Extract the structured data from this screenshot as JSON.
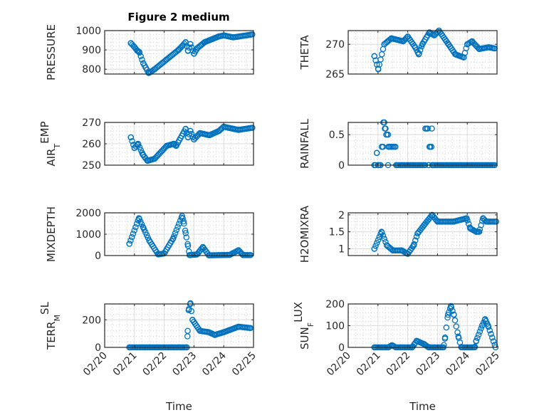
{
  "figure_title": "Figure 2 medium",
  "chart_data": [
    {
      "type": "scatter",
      "ylabel": {
        "main": "PRESSURE"
      },
      "ylim": [
        775,
        1000
      ],
      "yticks": [
        800,
        900,
        1000
      ],
      "xlim": [
        0,
        5
      ],
      "xlabel": "",
      "mode": "linear",
      "x": [
        0.88,
        1.0,
        1.1,
        1.16,
        1.3,
        1.48,
        1.68,
        2.08,
        2.48,
        2.72,
        2.8,
        2.88,
        3.0,
        3.12,
        3.36,
        3.84,
        4.0,
        4.32,
        4.96
      ],
      "y": [
        935,
        915,
        895,
        890,
        830,
        780,
        800,
        850,
        900,
        940,
        895,
        930,
        880,
        910,
        940,
        970,
        975,
        965,
        980
      ]
    },
    {
      "type": "scatter",
      "ylabel": {
        "main": "THETA"
      },
      "ylim": [
        265,
        272.3
      ],
      "yticks": [
        265,
        270
      ],
      "xlim": [
        0,
        5
      ],
      "xlabel": "",
      "mode": "linear",
      "x": [
        0.88,
        1.01,
        1.21,
        1.45,
        1.85,
        2.0,
        2.25,
        2.37,
        2.49,
        2.73,
        2.89,
        3.05,
        3.37,
        3.6,
        3.88,
        4.0,
        4.16,
        4.4,
        4.72,
        4.92
      ],
      "y": [
        268,
        265.8,
        270,
        271,
        270.5,
        271.3,
        269.5,
        268.3,
        270,
        272,
        271.5,
        272.3,
        270,
        268.3,
        267.8,
        270,
        270.5,
        269.2,
        269.5,
        269.3
      ]
    },
    {
      "type": "scatter",
      "ylabel": {
        "main": "AIR",
        "sub": "T",
        "rest": "EMP"
      },
      "ylim": [
        250,
        270
      ],
      "yticks": [
        250,
        260,
        270
      ],
      "xlim": [
        0,
        5
      ],
      "xlabel": "",
      "mode": "linear",
      "x": [
        0.88,
        1.0,
        1.12,
        1.28,
        1.44,
        1.68,
        2.08,
        2.32,
        2.4,
        2.72,
        2.8,
        2.88,
        3.0,
        3.2,
        3.52,
        3.84,
        4.0,
        4.32,
        4.5,
        4.96
      ],
      "y": [
        263,
        258,
        260,
        255,
        252,
        253,
        259,
        260,
        259,
        267,
        263,
        266,
        262,
        265,
        264,
        266,
        268,
        267,
        266.5,
        267.5
      ]
    },
    {
      "type": "scatter",
      "ylabel": {
        "main": "RAINFALL"
      },
      "ylim": [
        0,
        0.7
      ],
      "yticks": [
        0,
        0.5
      ],
      "xlim": [
        0,
        5
      ],
      "xlabel": "",
      "mode": "step",
      "x": [
        0.88,
        0.96,
        1.0,
        1.13,
        1.18,
        1.23,
        1.28,
        1.34,
        1.35,
        1.61,
        2.59,
        2.7,
        2.73,
        2.81,
        2.82,
        4.92
      ],
      "y": [
        0,
        0.2,
        0,
        0.3,
        0.7,
        0.6,
        0.5,
        0,
        0.3,
        0,
        0.6,
        0,
        0.3,
        0.6,
        0,
        0
      ]
    },
    {
      "type": "scatter",
      "ylabel": {
        "main": "MIXDEPTH"
      },
      "ylim": [
        0,
        2000
      ],
      "yticks": [
        0,
        1000,
        2000
      ],
      "xlim": [
        0,
        5
      ],
      "xlabel": "",
      "mode": "linear",
      "x": [
        0.83,
        1.15,
        1.3,
        1.5,
        1.8,
        2.0,
        2.3,
        2.6,
        2.65,
        2.72,
        2.8,
        2.85,
        3.1,
        3.3,
        3.5,
        4.2,
        4.5,
        4.65,
        4.9
      ],
      "y": [
        550,
        1750,
        1300,
        700,
        50,
        100,
        800,
        1850,
        1600,
        1050,
        450,
        20,
        50,
        400,
        10,
        30,
        250,
        20,
        20
      ]
    },
    {
      "type": "scatter",
      "ylabel": {
        "main": "H2OMIXRA"
      },
      "ylim": [
        0.8,
        2.06
      ],
      "yticks": [
        1,
        1.5,
        2
      ],
      "xlim": [
        0,
        5
      ],
      "xlabel": "",
      "mode": "linear",
      "x": [
        0.88,
        1.12,
        1.3,
        1.5,
        1.8,
        2.0,
        2.2,
        2.33,
        2.55,
        2.82,
        3.0,
        3.54,
        3.98,
        4.1,
        4.3,
        4.4,
        4.53,
        4.64,
        4.97
      ],
      "y": [
        1.0,
        1.5,
        1.1,
        0.95,
        0.95,
        0.85,
        1.1,
        1.45,
        1.7,
        2.0,
        1.8,
        1.8,
        1.9,
        1.6,
        1.5,
        1.5,
        1.9,
        1.8,
        1.8
      ]
    },
    {
      "type": "scatter",
      "ylabel": {
        "main": "TERR",
        "sub": "M",
        "rest": "SL"
      },
      "ylim": [
        0,
        315
      ],
      "yticks": [
        0,
        200
      ],
      "xlim": [
        0,
        5
      ],
      "xlabel": "Time",
      "xticklabels": [
        "02/20",
        "02/21",
        "02/22",
        "02/23",
        "02/24",
        "02/25"
      ],
      "mode": "linear",
      "x": [
        0.83,
        2.76,
        2.78,
        2.82,
        2.88,
        2.95,
        3.2,
        3.5,
        3.7,
        4.0,
        4.5,
        4.9
      ],
      "y": [
        0,
        0,
        80,
        270,
        320,
        200,
        120,
        110,
        90,
        110,
        150,
        140
      ]
    },
    {
      "type": "scatter",
      "ylabel": {
        "main": "SUN",
        "sub": "F",
        "rest": "LUX"
      },
      "ylim": [
        0,
        200
      ],
      "yticks": [
        0,
        100,
        200
      ],
      "xlim": [
        0,
        5
      ],
      "xlabel": "Time",
      "xticklabels": [
        "02/20",
        "02/21",
        "02/22",
        "02/23",
        "02/24",
        "02/25"
      ],
      "mode": "linear",
      "x": [
        0.88,
        1.35,
        1.47,
        1.6,
        2.15,
        2.3,
        2.55,
        2.7,
        3.2,
        3.25,
        3.35,
        3.45,
        3.55,
        3.7,
        3.8,
        4.25,
        4.3,
        4.5,
        4.6,
        4.7,
        4.95
      ],
      "y": [
        0,
        0,
        10,
        0,
        0,
        30,
        15,
        0,
        0,
        40,
        150,
        190,
        150,
        50,
        0,
        0,
        30,
        100,
        130,
        100,
        0
      ]
    }
  ],
  "colors": {
    "marker": "#0072BD",
    "axis": "#262626",
    "grid": "#dcdcdc"
  }
}
